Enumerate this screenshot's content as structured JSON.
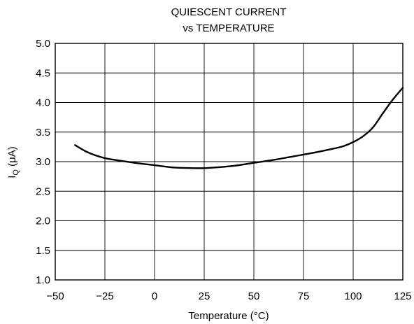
{
  "chart_data": {
    "type": "line",
    "title_line1": "QUIESCENT CURRENT",
    "title_line2": "vs TEMPERATURE",
    "xlabel": "Temperature (°C)",
    "ylabel_main": "I",
    "ylabel_sub": "Q",
    "ylabel_unit": " (μA)",
    "xlim": [
      -50,
      125
    ],
    "ylim": [
      1.0,
      5.0
    ],
    "grid": true,
    "x_ticks": [
      -50,
      -25,
      0,
      25,
      50,
      75,
      100,
      125
    ],
    "x_tick_labels": [
      "−50",
      "−25",
      "0",
      "25",
      "50",
      "75",
      "100",
      "125"
    ],
    "y_ticks": [
      1.0,
      1.5,
      2.0,
      2.5,
      3.0,
      3.5,
      4.0,
      4.5,
      5.0
    ],
    "y_tick_labels": [
      "1.0",
      "1.5",
      "2.0",
      "2.5",
      "3.0",
      "3.5",
      "4.0",
      "4.5",
      "5.0"
    ],
    "series": [
      {
        "x": [
          -40,
          -35,
          -30,
          -25,
          -20,
          -10,
          0,
          10,
          20,
          25,
          30,
          40,
          50,
          60,
          70,
          80,
          90,
          95,
          100,
          105,
          110,
          115,
          120,
          125
        ],
        "y": [
          3.28,
          3.18,
          3.11,
          3.06,
          3.03,
          2.98,
          2.94,
          2.9,
          2.89,
          2.89,
          2.9,
          2.93,
          2.98,
          3.03,
          3.09,
          3.15,
          3.22,
          3.26,
          3.33,
          3.43,
          3.58,
          3.82,
          4.05,
          4.25
        ]
      }
    ]
  }
}
